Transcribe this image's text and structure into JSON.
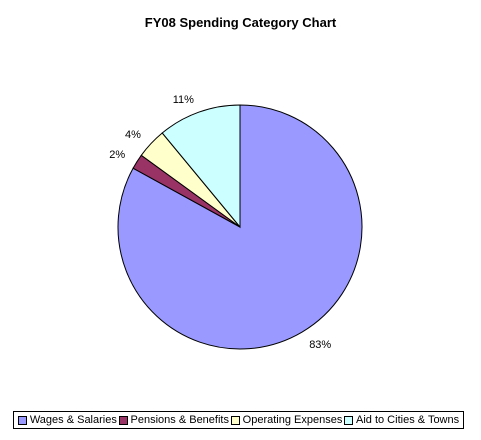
{
  "chart_data": {
    "type": "pie",
    "title": "FY08 Spending Category Chart",
    "categories": [
      "Wages & Salaries",
      "Pensions & Benefits",
      "Operating Expenses",
      "Aid to Cities & Towns"
    ],
    "values": [
      83,
      2,
      4,
      11
    ],
    "data_labels": [
      "83%",
      "2%",
      "4%",
      "11%"
    ],
    "colors": [
      "#9999FF",
      "#993366",
      "#FFFFCC",
      "#CCFFFF"
    ],
    "start_angle_deg": 0,
    "direction": "clockwise",
    "legend_position": "bottom"
  }
}
